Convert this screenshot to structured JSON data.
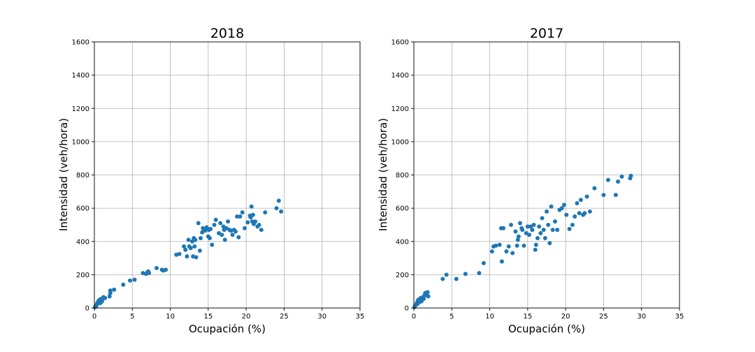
{
  "chart_data": [
    {
      "type": "scatter",
      "title": "2018",
      "xlabel": "Ocupación (%)",
      "ylabel": "Intensidad (veh/hora)",
      "xlim": [
        0,
        35
      ],
      "ylim": [
        0,
        1600
      ],
      "xticks": [
        0,
        5,
        10,
        15,
        20,
        25,
        30,
        35
      ],
      "yticks": [
        0,
        200,
        400,
        600,
        800,
        1000,
        1200,
        1400,
        1600
      ],
      "grid": true,
      "color": "#1f77b4",
      "x": [
        0.1,
        0.2,
        0.2,
        0.3,
        0.3,
        0.4,
        0.4,
        0.5,
        0.5,
        0.6,
        0.6,
        0.7,
        0.7,
        0.8,
        0.8,
        0.9,
        0.9,
        1.0,
        1.0,
        1.1,
        1.2,
        1.4,
        2.0,
        2.1,
        2.1,
        2.6,
        3.8,
        4.7,
        5.3,
        6.4,
        6.8,
        7.0,
        7.1,
        7.2,
        8.2,
        8.9,
        9.1,
        9.4,
        10.8,
        11.2,
        11.8,
        12.0,
        12.2,
        12.4,
        12.5,
        12.7,
        12.9,
        13.0,
        13.1,
        13.2,
        13.3,
        13.4,
        13.7,
        13.9,
        14.0,
        14.2,
        14.3,
        14.5,
        14.6,
        14.8,
        15.0,
        15.1,
        15.2,
        15.3,
        15.5,
        15.8,
        16.0,
        16.4,
        16.6,
        16.8,
        17.0,
        17.1,
        17.2,
        17.4,
        17.6,
        17.8,
        18.0,
        18.2,
        18.4,
        18.6,
        18.8,
        19.0,
        19.2,
        19.5,
        19.8,
        20.2,
        20.5,
        20.6,
        20.7,
        20.8,
        20.9,
        21.0,
        21.2,
        21.5,
        21.7,
        22.0,
        22.5,
        24.0,
        24.3,
        24.6
      ],
      "y": [
        5,
        10,
        15,
        18,
        20,
        25,
        30,
        35,
        40,
        30,
        45,
        50,
        35,
        40,
        30,
        55,
        45,
        50,
        40,
        55,
        65,
        60,
        70,
        90,
        105,
        110,
        140,
        165,
        170,
        210,
        205,
        215,
        220,
        210,
        240,
        230,
        225,
        230,
        320,
        325,
        370,
        350,
        310,
        410,
        370,
        360,
        400,
        310,
        420,
        370,
        410,
        305,
        510,
        345,
        420,
        455,
        480,
        470,
        465,
        485,
        430,
        470,
        420,
        475,
        380,
        500,
        530,
        450,
        510,
        440,
        490,
        470,
        410,
        480,
        520,
        470,
        465,
        440,
        470,
        460,
        550,
        425,
        550,
        575,
        480,
        515,
        555,
        545,
        610,
        520,
        560,
        505,
        520,
        490,
        500,
        470,
        575,
        600,
        645,
        580
      ]
    },
    {
      "type": "scatter",
      "title": "2017",
      "xlabel": "Ocupación (%)",
      "ylabel": "Intensidad (veh/hora)",
      "xlim": [
        0,
        35
      ],
      "ylim": [
        0,
        1600
      ],
      "xticks": [
        0,
        5,
        10,
        15,
        20,
        25,
        30,
        35
      ],
      "yticks": [
        0,
        200,
        400,
        600,
        800,
        1000,
        1200,
        1400,
        1600
      ],
      "grid": true,
      "color": "#1f77b4",
      "x": [
        0.1,
        0.2,
        0.3,
        0.4,
        0.5,
        0.5,
        0.6,
        0.7,
        0.8,
        0.9,
        1.0,
        1.1,
        1.2,
        1.3,
        1.4,
        1.5,
        1.6,
        1.7,
        1.8,
        1.9,
        3.8,
        4.3,
        5.6,
        6.8,
        8.6,
        9.2,
        10.3,
        10.5,
        10.8,
        11.3,
        11.5,
        11.6,
        11.8,
        12.2,
        12.5,
        12.8,
        13.0,
        13.4,
        13.6,
        13.7,
        13.8,
        14.0,
        14.2,
        14.3,
        14.5,
        14.8,
        15.0,
        15.2,
        15.4,
        15.6,
        15.8,
        16.0,
        16.1,
        16.3,
        16.5,
        16.7,
        16.9,
        17.1,
        17.3,
        17.5,
        17.7,
        17.9,
        18.1,
        18.3,
        18.6,
        18.9,
        19.2,
        19.5,
        19.8,
        20.1,
        20.5,
        20.9,
        21.2,
        21.5,
        21.8,
        22.0,
        22.3,
        22.5,
        22.8,
        23.2,
        23.8,
        25.0,
        25.6,
        26.6,
        26.9,
        27.4,
        28.5,
        28.6
      ],
      "y": [
        5,
        15,
        20,
        30,
        40,
        25,
        50,
        35,
        45,
        60,
        40,
        50,
        65,
        55,
        75,
        90,
        80,
        85,
        95,
        70,
        175,
        200,
        175,
        205,
        210,
        270,
        340,
        370,
        375,
        380,
        480,
        280,
        480,
        340,
        370,
        500,
        330,
        460,
        375,
        410,
        430,
        510,
        480,
        470,
        375,
        450,
        490,
        440,
        490,
        470,
        500,
        350,
        380,
        420,
        490,
        450,
        540,
        470,
        420,
        580,
        500,
        390,
        610,
        470,
        520,
        470,
        590,
        600,
        620,
        560,
        475,
        500,
        550,
        630,
        570,
        650,
        560,
        570,
        670,
        580,
        720,
        680,
        770,
        680,
        760,
        790,
        780,
        795
      ]
    }
  ]
}
